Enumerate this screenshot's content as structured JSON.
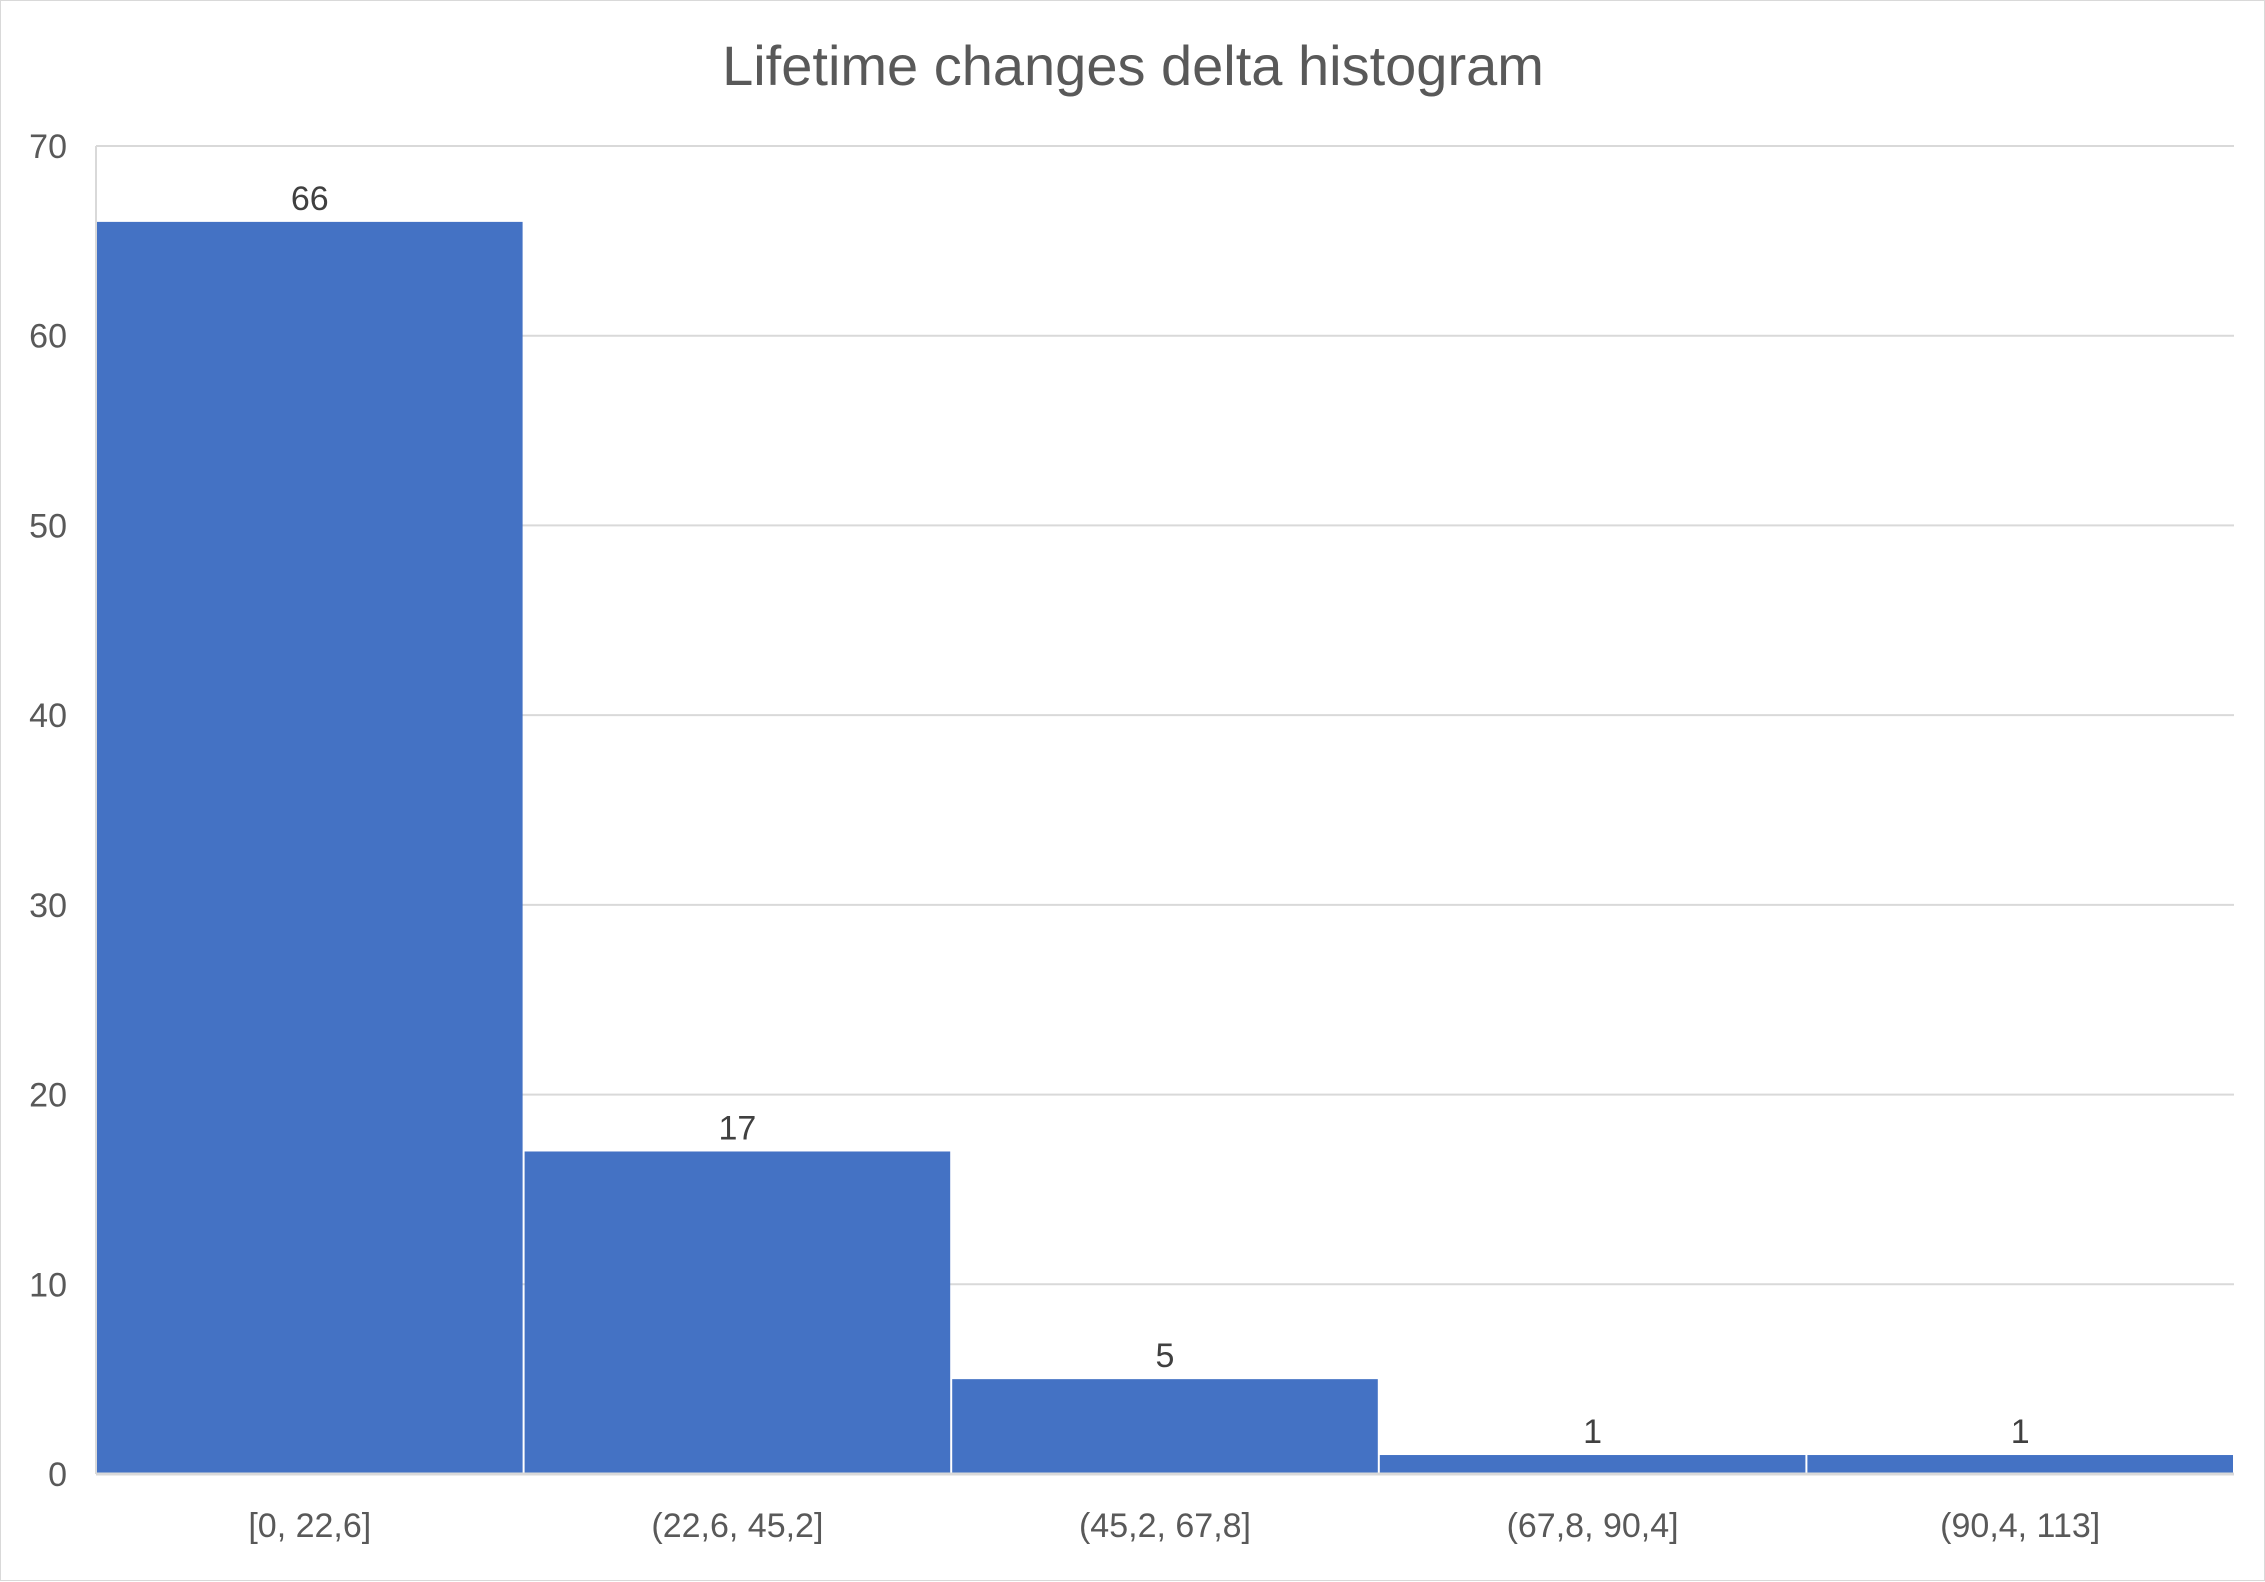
{
  "chart_data": {
    "type": "bar",
    "title": "Lifetime changes delta histogram",
    "categories": [
      "[0, 22,6]",
      "(22,6, 45,2]",
      "(45,2, 67,8]",
      "(67,8, 90,4]",
      "(90,4, 113]"
    ],
    "values": [
      66,
      17,
      5,
      1,
      1
    ],
    "data_labels": [
      "66",
      "17",
      "5",
      "1",
      "1"
    ],
    "xlabel": "",
    "ylabel": "",
    "ylim": [
      0,
      70
    ],
    "y_ticks": [
      "0",
      "10",
      "20",
      "30",
      "40",
      "50",
      "60",
      "70"
    ],
    "grid": true,
    "legend": "none",
    "bar_color": "#4472c4",
    "gridline_color": "#d9d9d9",
    "text_color": "#595959"
  }
}
